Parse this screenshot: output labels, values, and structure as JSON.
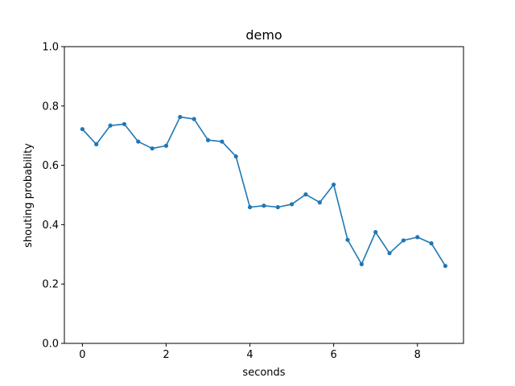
{
  "chart_data": {
    "type": "line",
    "title": "demo",
    "xlabel": "seconds",
    "ylabel": "shouting probability",
    "xlim": [
      -0.43,
      9.1
    ],
    "ylim": [
      0.0,
      1.0
    ],
    "x_ticks": [
      0,
      2,
      4,
      6,
      8
    ],
    "x_tick_labels": [
      "0",
      "2",
      "4",
      "6",
      "8"
    ],
    "y_ticks": [
      0.0,
      0.2,
      0.4,
      0.6,
      0.8,
      1.0
    ],
    "y_tick_labels": [
      "0.0",
      "0.2",
      "0.4",
      "0.6",
      "0.8",
      "1.0"
    ],
    "grid": false,
    "series": [
      {
        "color": "#1f77b4",
        "marker": "dot",
        "x": [
          0.0,
          0.333,
          0.667,
          1.0,
          1.333,
          1.667,
          2.0,
          2.333,
          2.667,
          3.0,
          3.333,
          3.667,
          4.0,
          4.333,
          4.667,
          5.0,
          5.333,
          5.667,
          6.0,
          6.333,
          6.667,
          7.0,
          7.333,
          7.667,
          8.0,
          8.333,
          8.667
        ],
        "values": [
          0.722,
          0.671,
          0.734,
          0.739,
          0.68,
          0.657,
          0.666,
          0.763,
          0.756,
          0.685,
          0.68,
          0.63,
          0.459,
          0.464,
          0.459,
          0.469,
          0.502,
          0.475,
          0.535,
          0.349,
          0.267,
          0.375,
          0.304,
          0.347,
          0.358,
          0.337,
          0.261
        ]
      }
    ]
  }
}
